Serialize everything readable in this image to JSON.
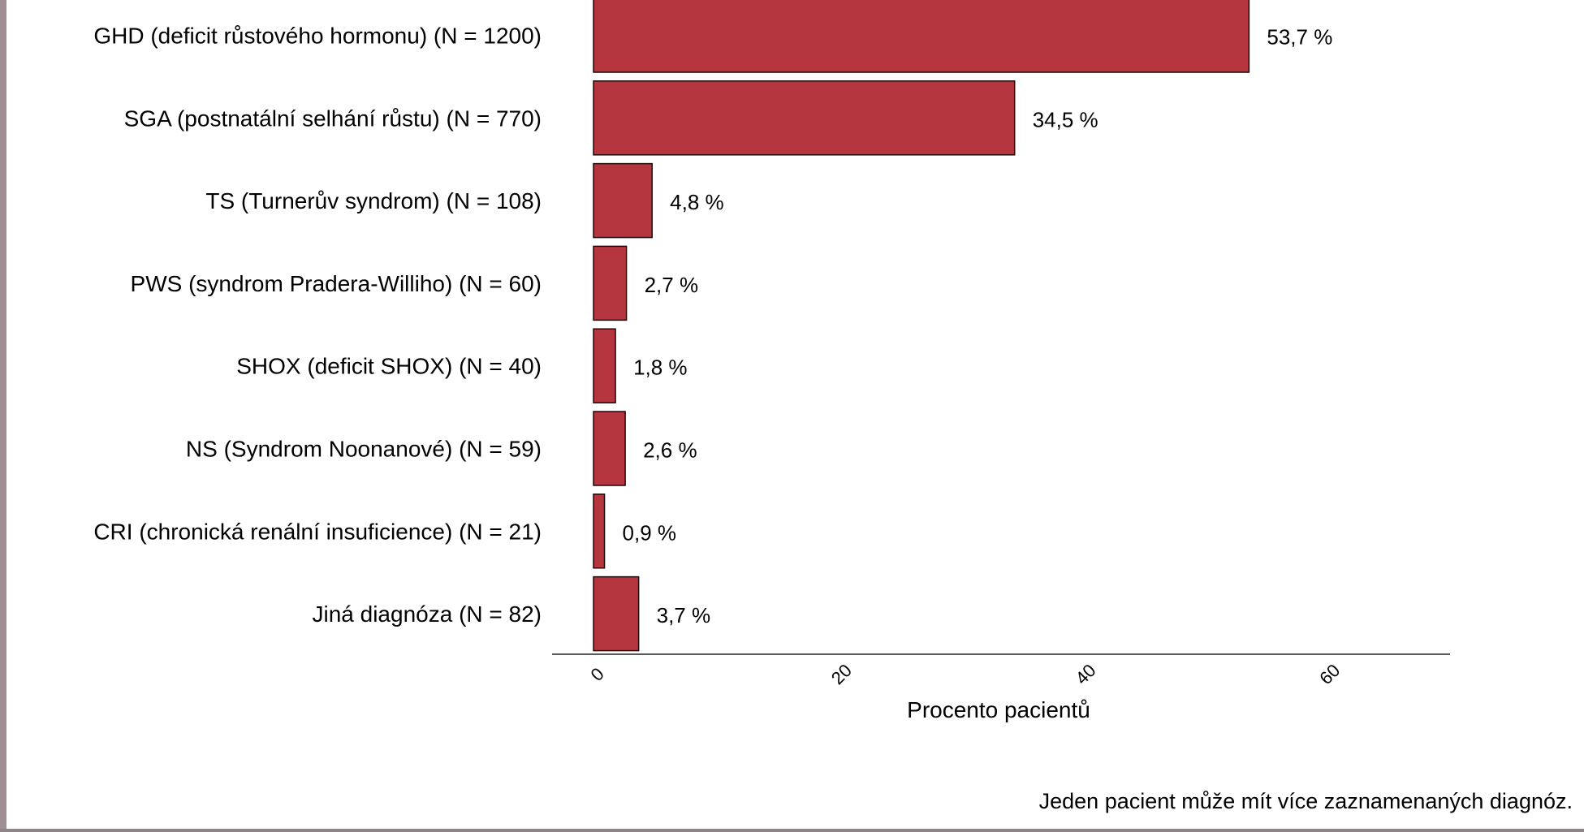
{
  "chart_data": {
    "type": "bar",
    "orientation": "horizontal",
    "categories": [
      "GHD (deficit růstového hormonu) (N = 1200)",
      "SGA (postnatální selhání růstu) (N = 770)",
      "TS (Turnerův syndrom) (N = 108)",
      "PWS (syndrom Pradera-Williho) (N = 60)",
      "SHOX (deficit SHOX) (N = 40)",
      "NS (Syndrom Noonanové) (N = 59)",
      "CRI (chronická renální insuficience) (N = 21)",
      "Jiná diagnóza (N = 82)"
    ],
    "values": [
      53.7,
      34.5,
      4.8,
      2.7,
      1.8,
      2.6,
      0.9,
      3.7
    ],
    "value_labels": [
      "53,7 %",
      "34,5 %",
      "4,8 %",
      "2,7 %",
      "1,8 %",
      "2,6 %",
      "0,9 %",
      "3,7 %"
    ],
    "xlabel": "Procento pacientů",
    "ylabel": "",
    "xlim": [
      0,
      60
    ],
    "xticks": [
      "0",
      "20",
      "40",
      "60"
    ],
    "grid": false,
    "bar_color": "#b5363f",
    "bar_edge_color": "#1a0a0c"
  },
  "footnote": "Jeden pacient může mít více zaznamenaných diagnóz.",
  "colors": {
    "left_edge": "#a08e95",
    "bottom_edge": "#8f8589"
  }
}
